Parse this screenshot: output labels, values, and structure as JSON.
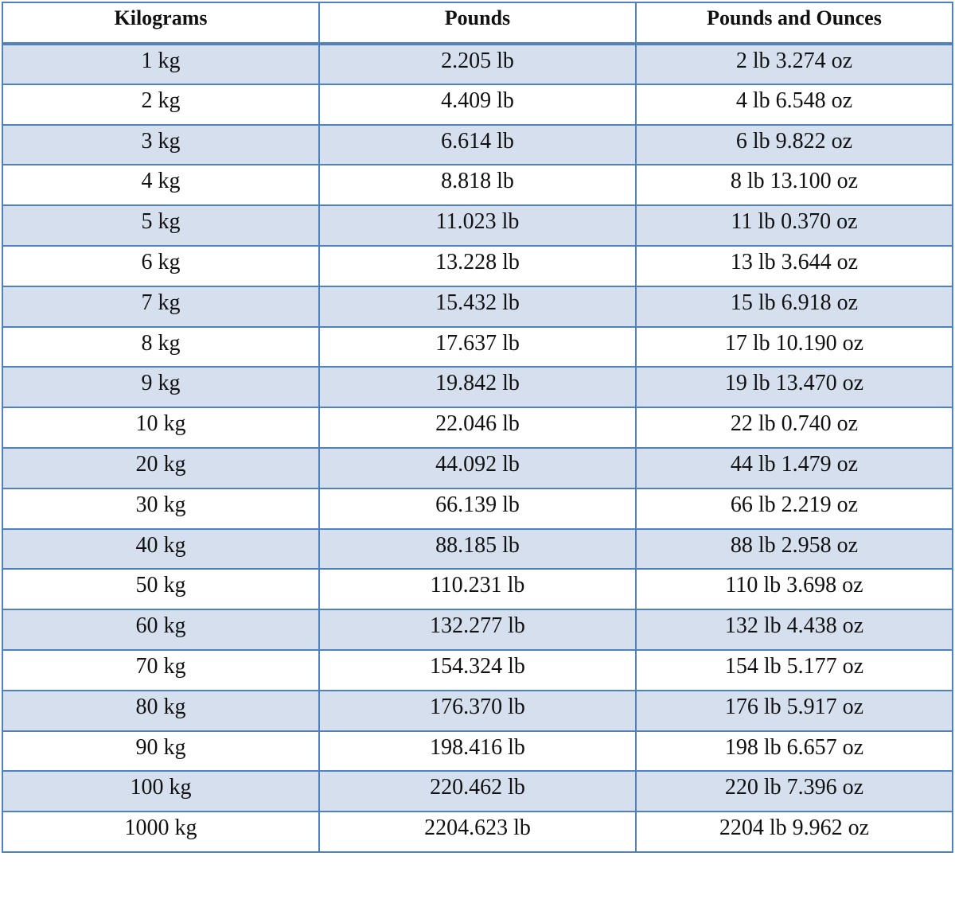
{
  "table": {
    "headers": [
      "Kilograms",
      "Pounds",
      "Pounds and Ounces"
    ],
    "rows": [
      [
        "1 kg",
        "2.205 lb",
        "2 lb 3.274 oz"
      ],
      [
        "2 kg",
        "4.409 lb",
        "4 lb 6.548 oz"
      ],
      [
        "3 kg",
        "6.614 lb",
        "6 lb 9.822 oz"
      ],
      [
        "4 kg",
        "8.818 lb",
        "8 lb 13.100 oz"
      ],
      [
        "5 kg",
        "11.023 lb",
        "11 lb 0.370 oz"
      ],
      [
        "6 kg",
        "13.228 lb",
        "13 lb 3.644 oz"
      ],
      [
        "7 kg",
        "15.432 lb",
        "15 lb 6.918 oz"
      ],
      [
        "8 kg",
        "17.637 lb",
        "17 lb 10.190 oz"
      ],
      [
        "9 kg",
        "19.842 lb",
        "19 lb 13.470 oz"
      ],
      [
        "10 kg",
        "22.046 lb",
        "22 lb 0.740 oz"
      ],
      [
        "20 kg",
        "44.092 lb",
        "44 lb 1.479 oz"
      ],
      [
        "30 kg",
        "66.139 lb",
        "66 lb 2.219 oz"
      ],
      [
        "40 kg",
        "88.185 lb",
        "88 lb 2.958 oz"
      ],
      [
        "50 kg",
        "110.231 lb",
        "110 lb 3.698 oz"
      ],
      [
        "60 kg",
        "132.277 lb",
        "132 lb 4.438 oz"
      ],
      [
        "70 kg",
        "154.324 lb",
        "154 lb 5.177 oz"
      ],
      [
        "80 kg",
        "176.370 lb",
        "176 lb 5.917 oz"
      ],
      [
        "90 kg",
        "198.416 lb",
        "198 lb 6.657 oz"
      ],
      [
        "100 kg",
        "220.462 lb",
        "220 lb 7.396 oz"
      ],
      [
        "1000 kg",
        "2204.623 lb",
        "2204 lb 9.962 oz"
      ]
    ],
    "colors": {
      "border": "#4f81bd",
      "stripe": "#d5dfee"
    }
  }
}
